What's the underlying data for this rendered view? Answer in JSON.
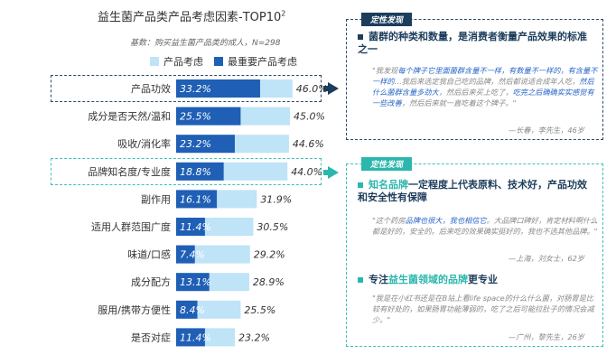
{
  "title": "益生菌产品类产品考虑因素-TOP10",
  "title_sup": "2",
  "subtitle": "基数：购买益生菌产品类的成人，N=298",
  "legend": [
    {
      "label": "产品考虑",
      "color": "#bfe3f7"
    },
    {
      "label": "最重要产品考虑",
      "color": "#1f5fb5"
    }
  ],
  "chart_data": {
    "type": "bar",
    "categories": [
      "产品功效",
      "成分是否天然/温和",
      "吸收/消化率",
      "品牌知名度/专业度",
      "副作用",
      "适用人群范围广度",
      "味道/口感",
      "成分配方",
      "服用/携带方便性",
      "是否对症"
    ],
    "series": [
      {
        "name": "产品考虑",
        "values": [
          46.0,
          45.0,
          44.6,
          44.0,
          31.9,
          30.5,
          29.2,
          28.9,
          25.5,
          23.2
        ],
        "labels": [
          "46.0%",
          "45.0%",
          "44.6%",
          "44.0%",
          "31.9%",
          "30.5%",
          "29.2%",
          "28.9%",
          "25.5%",
          "23.2%"
        ]
      },
      {
        "name": "最重要产品考虑",
        "values": [
          33.2,
          25.5,
          23.2,
          18.8,
          16.1,
          11.4,
          7.4,
          13.1,
          8.4,
          11.4
        ],
        "labels": [
          "33.2%",
          "25.5%",
          "23.2%",
          "18.8%",
          "16.1%",
          "11.4%",
          "7.4%",
          "13.1%",
          "8.4%",
          "11.4%"
        ]
      }
    ],
    "xlim": [
      0,
      50
    ],
    "highlighted": [
      "产品功效",
      "品牌知名度/专业度"
    ]
  },
  "panel1": {
    "tag": "定性发现",
    "point_a": "菌群的",
    "point_hl": "种类和数量",
    "point_b": "，是消费者衡量产品效果的标准之一",
    "quote_a": "\"我发现",
    "quote_blue1": "每个牌子它里面菌群含量不一样，有数量不一样的，有含量不一样的",
    "quote_b": "…我后来选定我自己吃的品牌，然后都说适合成年人吃，",
    "quote_blue2": "然后什么菌群含量多劲大",
    "quote_c": "，然后后来买上吃了，",
    "quote_blue3": "吃完之后确确实实感觉有一些改善",
    "quote_d": "，然后后来就一直吃着这个牌子。\"",
    "source": "—长春，李先生，46岁"
  },
  "panel2": {
    "tag": "定性发现",
    "point1_hl": "知名品牌",
    "point1_b": "一定程度上代表原料、技术好，产品功效和安全性有保障",
    "quote1_a": "\"这个药房",
    "quote1_blue": "品牌也很大，我也相信它",
    "quote1_b": "。大品牌口碑好，肯定材料啊什么都是好的，安全的。后来吃的效果确实挺好的，我也不选其他品牌。\"",
    "source1": "—上海，刘女士，62岁",
    "point2_a": "专注",
    "point2_hl": "益生菌领域的品牌",
    "point2_b": "更专业",
    "quote2": "\"我是在小红书还是在B站上看life space的什么什么菌，对肠胃是比较有好处的，如果肠胃功能薄弱的，吃了之后可能拉肚子的情况会减少。\"",
    "source2": "—广州，黎先生，26岁"
  }
}
